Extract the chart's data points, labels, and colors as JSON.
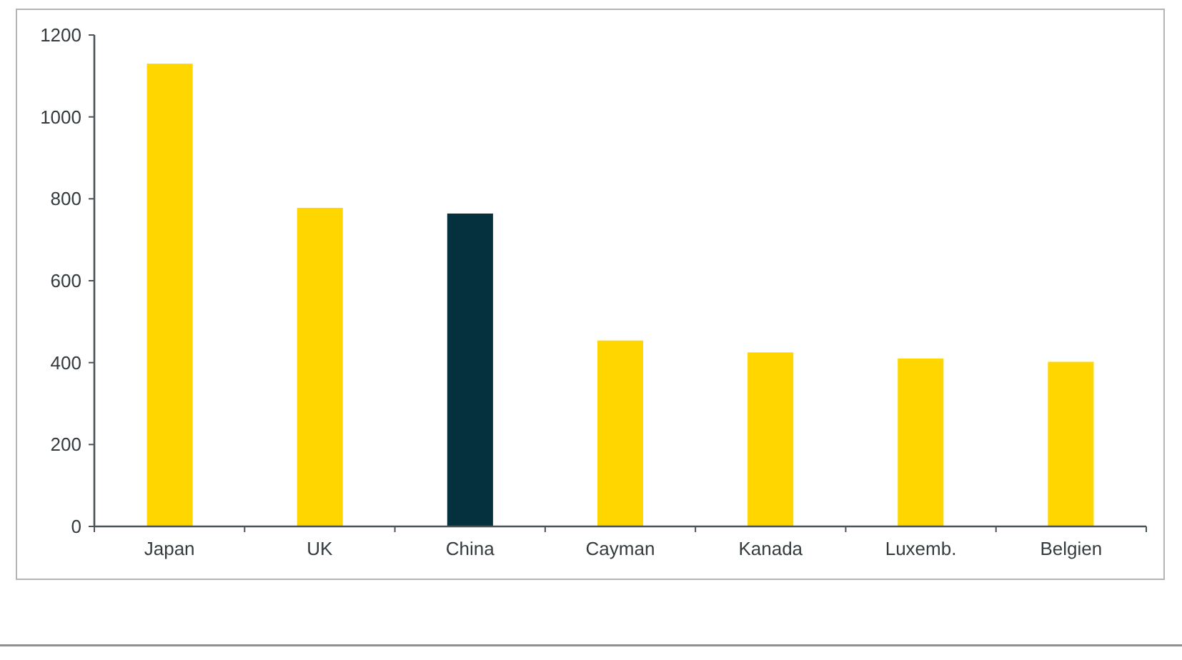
{
  "chart_data": {
    "type": "bar",
    "categories": [
      "Japan",
      "UK",
      "China",
      "Cayman",
      "Kanada",
      "Luxemb.",
      "Belgien"
    ],
    "values": [
      1130,
      778,
      764,
      454,
      425,
      410,
      402
    ],
    "colors": [
      "#ffd600",
      "#ffd600",
      "#05303d",
      "#ffd600",
      "#ffd600",
      "#ffd600",
      "#ffd600"
    ],
    "ylim": [
      0,
      1200
    ],
    "yticks": [
      0,
      200,
      400,
      600,
      800,
      1000,
      1200
    ]
  }
}
